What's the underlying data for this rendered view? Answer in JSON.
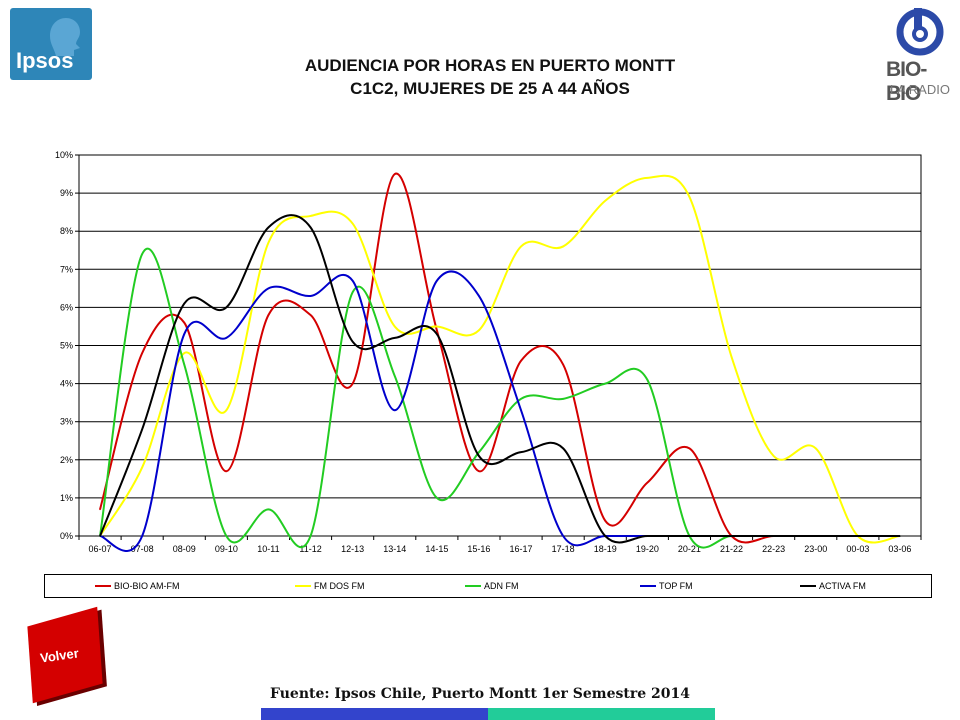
{
  "header": {
    "ipsos_logo": "Ipsos",
    "radio_logo_name": "BIO-BIO",
    "radio_logo_sub": "LA RADIO",
    "title_line1": "AUDIENCIA POR HORAS EN PUERTO MONTT",
    "title_line2": "C1C2, MUJERES DE 25 A 44 AÑOS"
  },
  "chart_data": {
    "type": "line",
    "categories": [
      "06-07",
      "07-08",
      "08-09",
      "09-10",
      "10-11",
      "11-12",
      "12-13",
      "13-14",
      "14-15",
      "15-16",
      "16-17",
      "17-18",
      "18-19",
      "19-20",
      "20-21",
      "21-22",
      "22-23",
      "23-00",
      "00-03",
      "03-06"
    ],
    "ylim": [
      0,
      10
    ],
    "ytick_labels": [
      "0%",
      "1%",
      "2%",
      "3%",
      "4%",
      "5%",
      "6%",
      "7%",
      "8%",
      "9%",
      "10%"
    ],
    "grid": true,
    "legend_position": "bottom",
    "series": [
      {
        "name": "BIO-BIO AM-FM",
        "color": "#d40000",
        "values": [
          0.7,
          4.8,
          5.6,
          1.7,
          5.8,
          5.8,
          4.0,
          9.5,
          5.4,
          1.7,
          4.6,
          4.5,
          0.4,
          1.4,
          2.3,
          0.0,
          0.0,
          0.0,
          0.0,
          0.0
        ]
      },
      {
        "name": "FM DOS FM",
        "color": "#ffff00",
        "values": [
          0.0,
          1.8,
          4.8,
          3.3,
          7.7,
          8.4,
          8.2,
          5.5,
          5.5,
          5.4,
          7.6,
          7.6,
          8.8,
          9.4,
          8.9,
          4.7,
          2.1,
          2.3,
          0.0,
          0.0
        ]
      },
      {
        "name": "ADN FM",
        "color": "#22cc22",
        "values": [
          0.0,
          7.4,
          4.5,
          0.0,
          0.7,
          0.0,
          6.4,
          4.2,
          1.0,
          2.2,
          3.6,
          3.6,
          4.0,
          4.1,
          0.0,
          0.0,
          0.0,
          0.0,
          0.0,
          0.0
        ]
      },
      {
        "name": "TOP FM",
        "color": "#0000cc",
        "values": [
          0.0,
          0.0,
          5.3,
          5.2,
          6.5,
          6.3,
          6.7,
          3.3,
          6.7,
          6.3,
          3.3,
          0.0,
          0.0,
          0.0,
          0.0,
          0.0,
          0.0,
          0.0,
          0.0,
          0.0
        ]
      },
      {
        "name": "ACTIVA FM",
        "color": "#000000",
        "values": [
          0.0,
          2.8,
          6.1,
          6.0,
          8.1,
          8.1,
          5.1,
          5.2,
          5.3,
          2.1,
          2.2,
          2.3,
          0.0,
          0.0,
          0.0,
          0.0,
          0.0,
          0.0,
          0.0,
          0.0
        ]
      }
    ]
  },
  "legend_labels": [
    "BIO-BIO AM-FM",
    "FM DOS FM",
    "ADN FM",
    "TOP FM",
    "ACTIVA FM"
  ],
  "footer": {
    "volver_label": "Volver",
    "source": "Fuente: Ipsos Chile, Puerto Montt 1er Semestre 2014"
  }
}
